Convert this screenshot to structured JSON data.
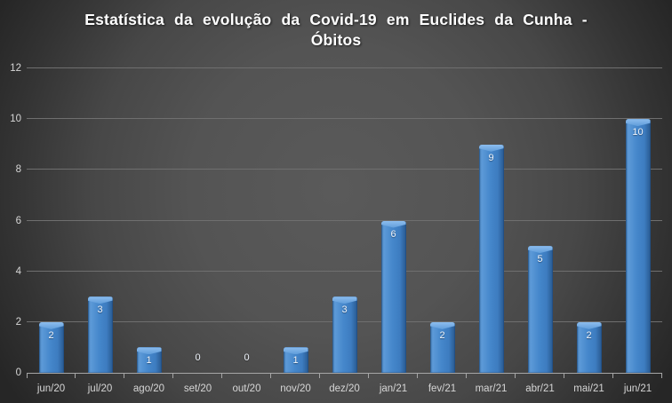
{
  "chart_data": {
    "type": "bar",
    "title": "Estatística da evolução da Covid-19 em Euclides da Cunha - Óbitos",
    "title_lines": [
      "Estatística da evolução da Covid-19 em Euclides da Cunha -",
      "Óbitos"
    ],
    "categories": [
      "jun/20",
      "jul/20",
      "ago/20",
      "set/20",
      "out/20",
      "nov/20",
      "dez/20",
      "jan/21",
      "fev/21",
      "mar/21",
      "abr/21",
      "mai/21",
      "jun/21"
    ],
    "values": [
      2,
      3,
      1,
      0,
      0,
      1,
      3,
      6,
      2,
      9,
      5,
      2,
      10
    ],
    "xlabel": "",
    "ylabel": "",
    "ylim": [
      0,
      12
    ],
    "yticks": [
      0,
      2,
      4,
      6,
      8,
      10,
      12
    ],
    "grid": true,
    "legend_position": "none",
    "data_labels": true,
    "colors": {
      "background_center": "#5a5a5a",
      "background_edge": "#262626",
      "bar_fill": "#4285c9",
      "bar_highlight": "#8dbdee",
      "bar_shadow": "#28598f",
      "gridline": "#6f6f6f",
      "axis_line": "#a6a6a6",
      "tick_label": "#d6d6d6",
      "data_label": "#eef3fa",
      "title": "#ffffff"
    }
  }
}
